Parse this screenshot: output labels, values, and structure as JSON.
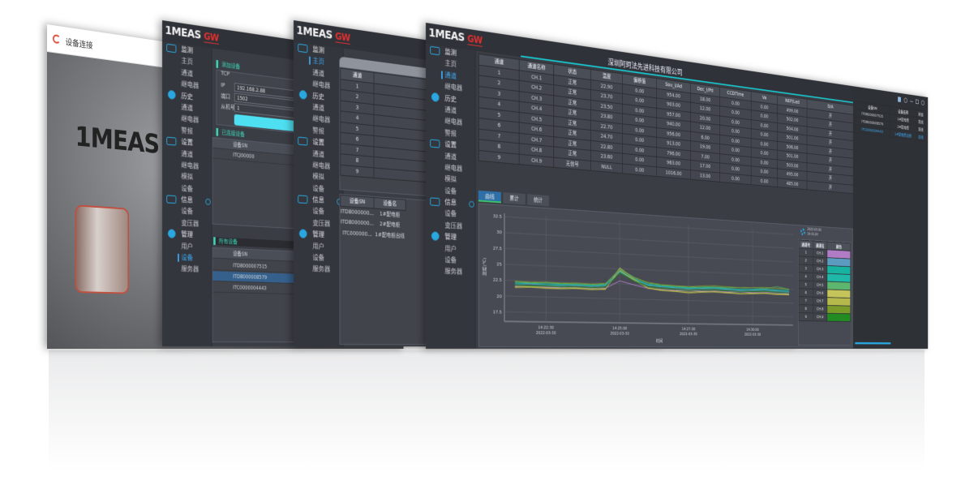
{
  "login": {
    "title": "设备连接",
    "logo": "1MEAS",
    "icon": "app-logo-icon"
  },
  "brand": {
    "logo": "1MEAS",
    "sub": "GW",
    "company": "深圳阿珂法先进科技有限公司",
    "accent": "#2aa7e0",
    "highlight": "#3ed6b8"
  },
  "sidebar": [
    {
      "label": "监测",
      "icon": "monitor-icon",
      "items": [
        "主页",
        "通道",
        "继电器"
      ]
    },
    {
      "label": "历史",
      "icon": "history-clock-icon",
      "items": [
        "通道",
        "继电器",
        "警报"
      ]
    },
    {
      "label": "设置",
      "icon": "settings-monitor-icon",
      "items": [
        "通道",
        "继电器",
        "模拟",
        "设备"
      ]
    },
    {
      "label": "信息",
      "icon": "info-list-icon",
      "items": [
        "设备",
        "变压器"
      ]
    },
    {
      "label": "管理",
      "icon": "users-icon",
      "items": [
        "用户",
        "设备",
        "服务器"
      ]
    }
  ],
  "device_window": {
    "add_section": "添加设备",
    "tcp_label": "TCP",
    "ip_label": "IP",
    "ip_value": "192.168.2.88",
    "port_label": "端口",
    "port_value": "1502",
    "slave_label": "从机号",
    "slave_value": "1",
    "connected_section": "已连接设备",
    "connected_header": "设备SN",
    "connected_rows": [
      "ITCJ00000"
    ],
    "all_section": "所有设备",
    "all_header": "设备SN",
    "all_rows": [
      "ITD8000007515",
      "ITD8000008579",
      "ITC0000004443"
    ]
  },
  "home_window": {
    "channel_header": "通道",
    "channels": [
      "1",
      "2",
      "3",
      "4",
      "5",
      "6",
      "7",
      "8",
      "9"
    ],
    "device_headers": [
      "设备SN",
      "设备名"
    ],
    "devices": [
      [
        "ITD8000000...",
        "1#配电柜"
      ],
      [
        "ITD8000000...",
        "2#配电柜"
      ],
      [
        "ITC000000...",
        "1#配电柜出线"
      ]
    ]
  },
  "main_window": {
    "table": {
      "headers": [
        "通道",
        "通道名称",
        "状态",
        "温度",
        "偏移值",
        "Sou_I/Ad",
        "Dec_I/Pd",
        "CCDTime",
        "Va",
        "NEP/Led",
        "D/A"
      ],
      "rows": [
        [
          "1",
          "CH.1",
          "正常",
          "22.90",
          "0.00",
          "954.00",
          "18.00",
          "0.00",
          "0.00",
          "499.00",
          "开"
        ],
        [
          "2",
          "CH.2",
          "正常",
          "23.70",
          "0.00",
          "903.00",
          "12.00",
          "0.00",
          "0.00",
          "502.00",
          "开"
        ],
        [
          "3",
          "CH.3",
          "正常",
          "23.50",
          "0.00",
          "957.00",
          "20.00",
          "0.00",
          "0.00",
          "504.00",
          "开"
        ],
        [
          "4",
          "CH.4",
          "正常",
          "23.80",
          "0.00",
          "940.00",
          "12.00",
          "0.00",
          "0.00",
          "501.00",
          "开"
        ],
        [
          "5",
          "CH.5",
          "正常",
          "22.70",
          "0.00",
          "956.00",
          "6.00",
          "0.00",
          "0.00",
          "506.00",
          "开"
        ],
        [
          "6",
          "CH.6",
          "正常",
          "24.70",
          "0.00",
          "913.00",
          "19.00",
          "0.00",
          "0.00",
          "501.00",
          "开"
        ],
        [
          "7",
          "CH.7",
          "正常",
          "22.80",
          "0.00",
          "796.00",
          "7.00",
          "0.00",
          "0.00",
          "503.00",
          "开"
        ],
        [
          "8",
          "CH.8",
          "正常",
          "23.60",
          "0.00",
          "963.00",
          "17.00",
          "0.00",
          "0.00",
          "495.00",
          "开"
        ],
        [
          "9",
          "CH.9",
          "无信号",
          "NULL",
          "0.00",
          "1016.00",
          "13.00",
          "0.00",
          "0.00",
          "485.00",
          "开"
        ]
      ]
    },
    "tabs": [
      "曲线",
      "累计",
      "统计"
    ],
    "active_tab": 0,
    "timestamp": {
      "date": "2022-03-30",
      "time": "14:32:20"
    },
    "legend_headers": [
      "通道号",
      "通道名",
      "颜色"
    ],
    "right_panel": {
      "headers": [
        "设备SN",
        "设备名称",
        "状态"
      ],
      "rows": [
        [
          "ITD8000007515",
          "1#配电柜",
          "离线",
          false
        ],
        [
          "ITD8000008579",
          "2#配电柜",
          "离线",
          false
        ],
        [
          "ITC0000004443",
          "1#配电柜出线",
          "在线",
          true
        ]
      ]
    }
  },
  "chart_data": {
    "type": "line",
    "xlabel": "时间",
    "ylabel": "温度(℃)",
    "ylim": [
      16,
      33
    ],
    "yticks": [
      "32.5",
      "30",
      "27.5",
      "25",
      "22.5",
      "20",
      "17.5"
    ],
    "xlim": [
      "14:21:10",
      "14:31:40"
    ],
    "xticks": [
      [
        "14:22:30",
        "2022-03-30"
      ],
      [
        "14:25:00",
        "2022-03-30"
      ],
      [
        "14:27:30",
        "2022-03-30"
      ],
      [
        "14:30:00",
        "2022-03-30"
      ]
    ],
    "grid": true,
    "x": [
      "14:21:30",
      "14:22:00",
      "14:22:30",
      "14:23:00",
      "14:23:30",
      "14:24:00",
      "14:24:30",
      "14:25:00",
      "14:25:30",
      "14:26:00",
      "14:26:30",
      "14:27:00",
      "14:27:30",
      "14:28:00",
      "14:28:30",
      "14:29:00",
      "14:29:30",
      "14:30:00",
      "14:30:30",
      "14:31:00",
      "14:31:30"
    ],
    "series": [
      {
        "name": "CH.1",
        "id": "1",
        "color": "#b07cc6",
        "values": [
          21.6,
          21.7,
          21.6,
          21.6,
          21.7,
          21.6,
          21.7,
          23.0,
          22.4,
          21.9,
          21.8,
          21.7,
          21.8,
          21.7,
          21.8,
          21.7,
          21.8,
          21.7,
          21.8,
          21.8,
          21.7
        ]
      },
      {
        "name": "CH.2",
        "id": "2",
        "color": "#5b9bc0",
        "values": [
          21.9,
          22.0,
          21.9,
          21.9,
          22.0,
          21.9,
          22.1,
          24.6,
          23.4,
          22.4,
          22.2,
          22.1,
          22.0,
          22.1,
          22.2,
          22.1,
          22.0,
          22.1,
          22.2,
          22.1,
          22.0
        ]
      },
      {
        "name": "CH.3",
        "id": "3",
        "color": "#17b3a0",
        "values": [
          22.2,
          22.1,
          22.2,
          22.1,
          22.2,
          22.1,
          22.3,
          24.8,
          23.5,
          22.6,
          22.4,
          22.3,
          22.2,
          22.3,
          22.4,
          22.3,
          22.2,
          22.3,
          22.4,
          22.3,
          22.3
        ]
      },
      {
        "name": "CH.4",
        "id": "4",
        "color": "#1fb8a8",
        "values": [
          22.0,
          22.1,
          22.0,
          22.0,
          22.1,
          22.0,
          22.2,
          24.5,
          23.3,
          22.5,
          22.3,
          22.2,
          22.1,
          22.2,
          22.3,
          22.2,
          22.1,
          22.2,
          22.3,
          22.2,
          22.1
        ]
      },
      {
        "name": "CH.5",
        "id": "5",
        "color": "#5db56e",
        "values": [
          22.3,
          22.2,
          22.3,
          22.2,
          22.3,
          22.2,
          22.4,
          25.0,
          23.7,
          22.8,
          22.5,
          22.4,
          22.3,
          22.4,
          22.5,
          22.4,
          22.5,
          22.6,
          22.5,
          22.9,
          22.5
        ]
      },
      {
        "name": "CH.6",
        "id": "6",
        "color": "#c4c45a",
        "values": [
          21.5,
          21.6,
          21.5,
          21.5,
          21.6,
          21.5,
          21.6,
          24.7,
          23.2,
          22.0,
          21.7,
          21.6,
          21.5,
          21.6,
          21.7,
          21.6,
          21.5,
          21.6,
          21.7,
          21.6,
          21.6
        ]
      },
      {
        "name": "CH.7",
        "id": "7",
        "color": "#b5b84a",
        "values": [
          21.4,
          21.5,
          21.4,
          21.4,
          21.5,
          21.4,
          21.5,
          25.2,
          23.4,
          21.9,
          21.6,
          21.5,
          21.3,
          21.5,
          21.6,
          21.5,
          21.4,
          21.5,
          21.6,
          21.5,
          21.5
        ]
      },
      {
        "name": "CH.8",
        "id": "8",
        "color": "#7a9a2a",
        "values": [
          22.4,
          22.3,
          22.4,
          22.3,
          22.4,
          22.3,
          22.5,
          24.9,
          23.6,
          22.9,
          22.6,
          22.5,
          22.4,
          22.6,
          22.7,
          22.6,
          22.5,
          22.6,
          22.7,
          22.6,
          22.5
        ]
      },
      {
        "name": "CH.9",
        "id": "9",
        "color": "#228b22",
        "values": [
          21.8,
          21.7,
          21.8,
          21.7,
          21.8,
          21.7,
          21.9,
          24.3,
          23.1,
          22.2,
          22.0,
          21.9,
          21.8,
          21.9,
          22.0,
          21.9,
          21.8,
          21.9,
          22.0,
          21.9,
          21.8
        ]
      }
    ]
  }
}
